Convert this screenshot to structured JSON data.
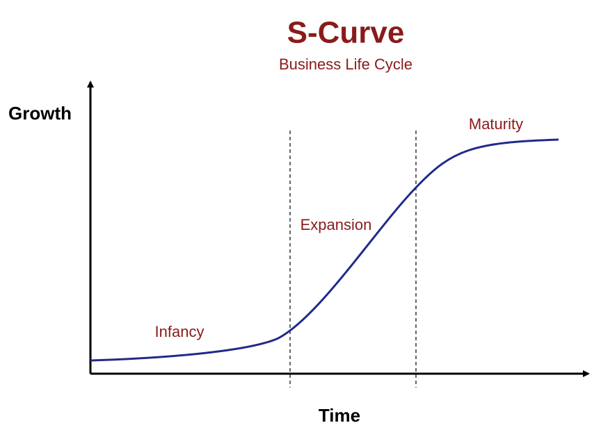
{
  "header": {
    "title": "S-Curve",
    "subtitle": "Business Life Cycle"
  },
  "axes": {
    "y_label": "Growth",
    "x_label": "Time"
  },
  "stages": [
    {
      "label": "Infancy"
    },
    {
      "label": "Expansion"
    },
    {
      "label": "Maturity"
    }
  ]
}
